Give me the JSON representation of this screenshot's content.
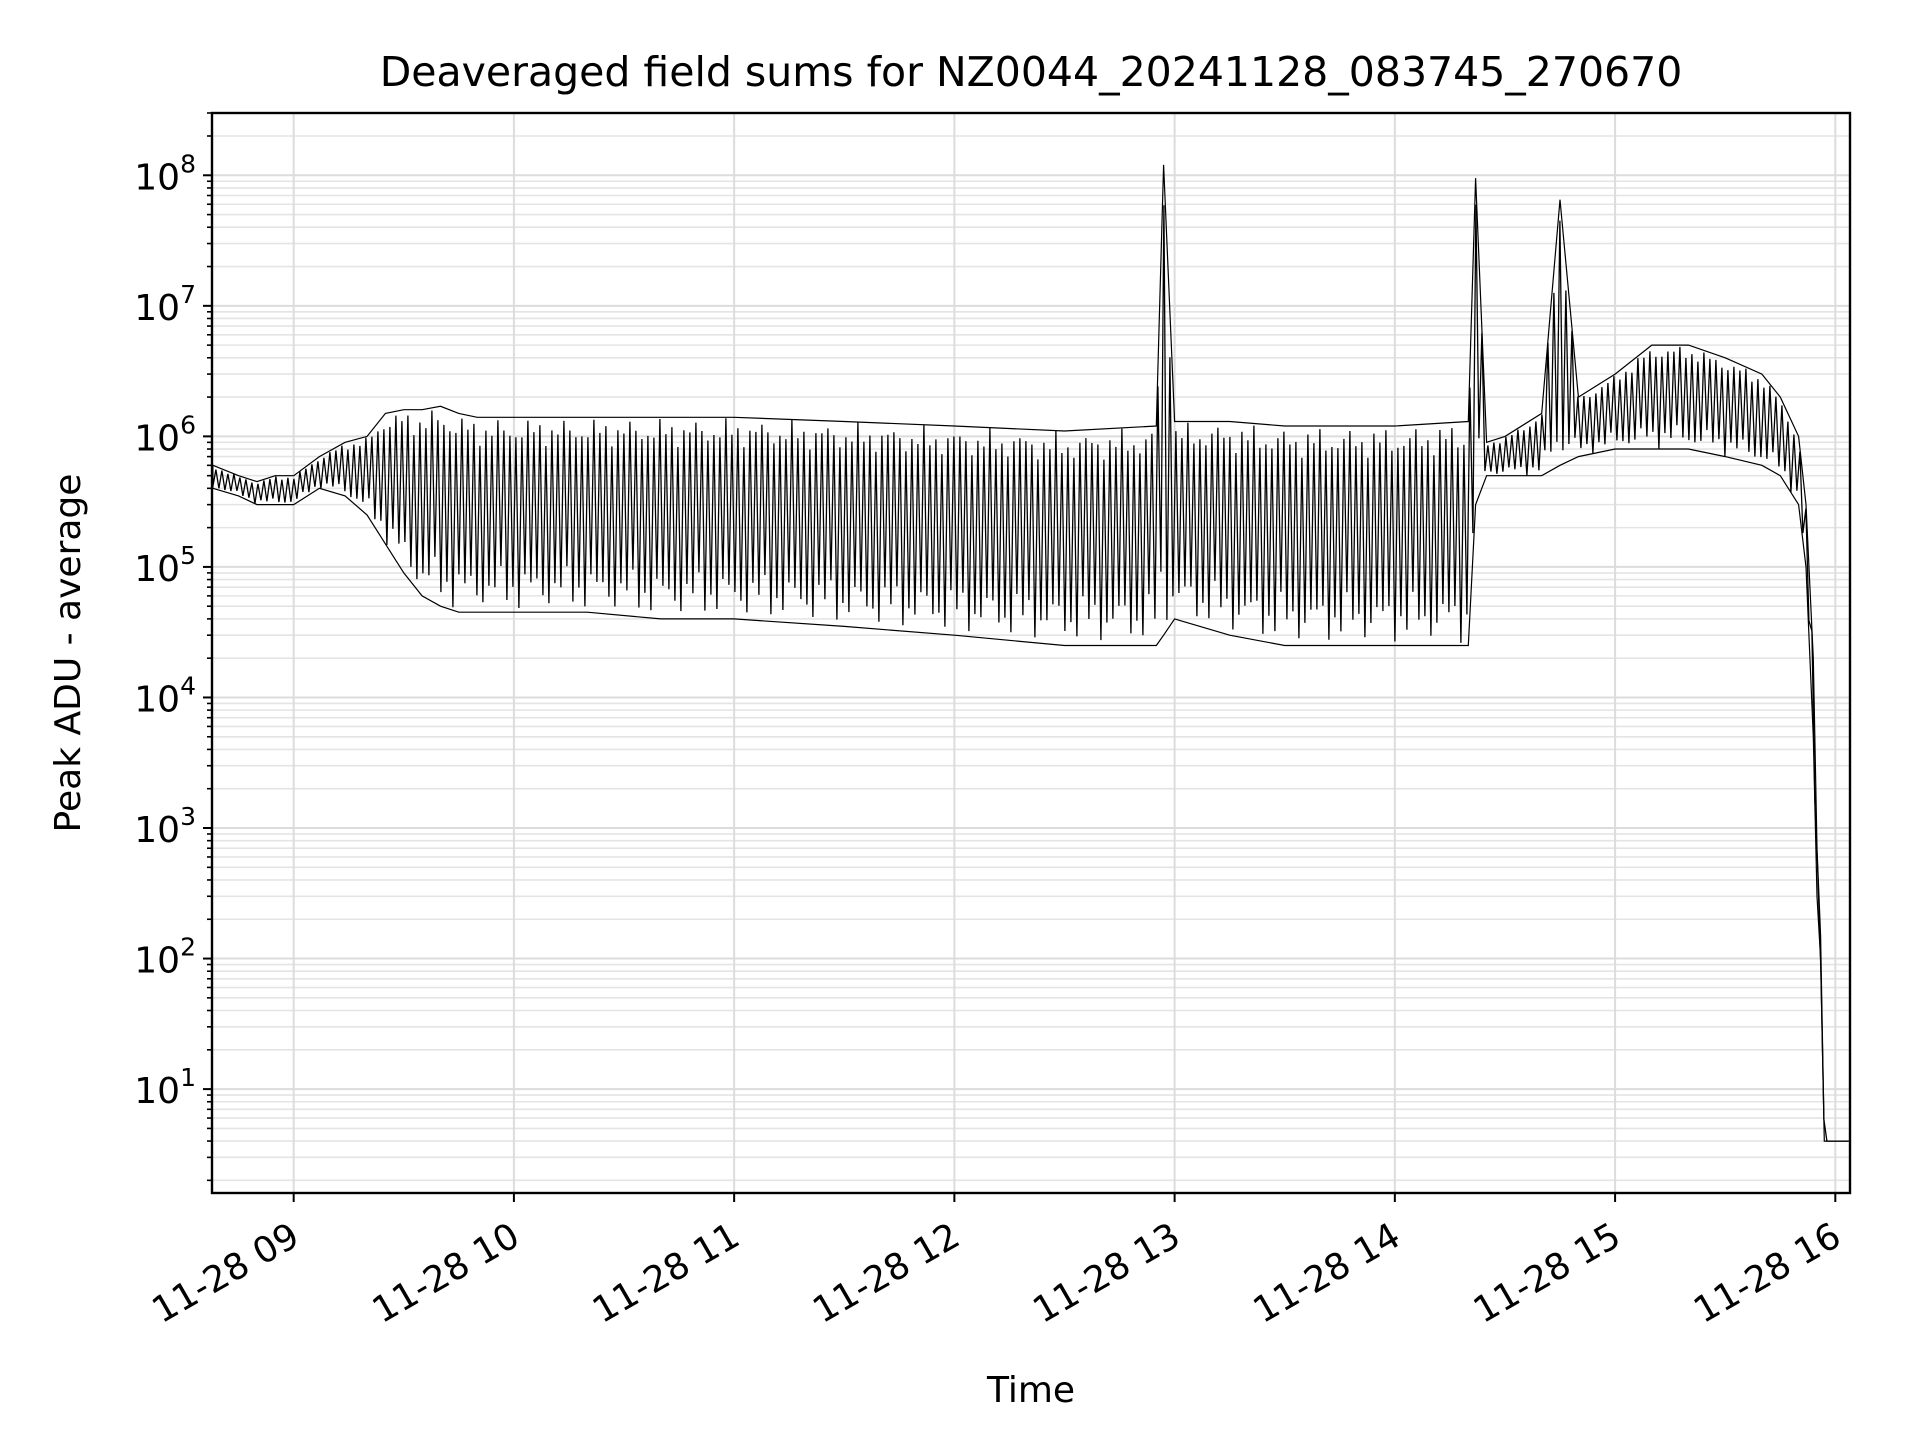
{
  "chart_data": {
    "type": "line",
    "title": "Deaveraged field sums for NZ0044_20241128_083745_270670",
    "xlabel": "Time",
    "ylabel": "Peak ADU - average",
    "yscale": "log",
    "grid": true,
    "xlim": [
      "2024-11-28 08:37:45",
      "2024-11-28 16:04:00"
    ],
    "ylim": [
      1.6,
      300000000
    ],
    "x_ticks": [
      {
        "value": "2024-11-28 09:00",
        "label": "11-28 09"
      },
      {
        "value": "2024-11-28 10:00",
        "label": "11-28 10"
      },
      {
        "value": "2024-11-28 11:00",
        "label": "11-28 11"
      },
      {
        "value": "2024-11-28 12:00",
        "label": "11-28 12"
      },
      {
        "value": "2024-11-28 13:00",
        "label": "11-28 13"
      },
      {
        "value": "2024-11-28 14:00",
        "label": "11-28 14"
      },
      {
        "value": "2024-11-28 15:00",
        "label": "11-28 15"
      },
      {
        "value": "2024-11-28 16:00",
        "label": "11-28 16"
      }
    ],
    "y_ticks": [
      {
        "value": 10,
        "base": "10",
        "exp": "1"
      },
      {
        "value": 100,
        "base": "10",
        "exp": "2"
      },
      {
        "value": 1000,
        "base": "10",
        "exp": "3"
      },
      {
        "value": 10000,
        "base": "10",
        "exp": "4"
      },
      {
        "value": 100000,
        "base": "10",
        "exp": "5"
      },
      {
        "value": 1000000,
        "base": "10",
        "exp": "6"
      },
      {
        "value": 10000000,
        "base": "10",
        "exp": "7"
      },
      {
        "value": 100000000,
        "base": "10",
        "exp": "8"
      }
    ],
    "line_color": "#000000",
    "series": [
      {
        "x": [
          "2024-11-28 08:38",
          "2024-11-28 08:45",
          "2024-11-28 08:50",
          "2024-11-28 08:55",
          "2024-11-28 09:00",
          "2024-11-28 09:07",
          "2024-11-28 09:14",
          "2024-11-28 09:20",
          "2024-11-28 09:25",
          "2024-11-28 09:30",
          "2024-11-28 09:35",
          "2024-11-28 09:40",
          "2024-11-28 09:45",
          "2024-11-28 09:50",
          "2024-11-28 10:00",
          "2024-11-28 10:20",
          "2024-11-28 10:40",
          "2024-11-28 11:00",
          "2024-11-28 11:30",
          "2024-11-28 12:00",
          "2024-11-28 12:30",
          "2024-11-28 12:55",
          "2024-11-28 12:57",
          "2024-11-28 13:00",
          "2024-11-28 13:15",
          "2024-11-28 13:30",
          "2024-11-28 14:00",
          "2024-11-28 14:20",
          "2024-11-28 14:22",
          "2024-11-28 14:25",
          "2024-11-28 14:30",
          "2024-11-28 14:40",
          "2024-11-28 14:45",
          "2024-11-28 14:50",
          "2024-11-28 15:00",
          "2024-11-28 15:10",
          "2024-11-28 15:20",
          "2024-11-28 15:30",
          "2024-11-28 15:40",
          "2024-11-28 15:45",
          "2024-11-28 15:50",
          "2024-11-28 15:52",
          "2024-11-28 15:54",
          "2024-11-28 15:55",
          "2024-11-28 15:56",
          "2024-11-28 15:57",
          "2024-11-28 16:00",
          "2024-11-28 16:04"
        ],
        "upper": [
          600000,
          500000,
          450000,
          500000,
          500000,
          700000,
          900000,
          1000000,
          1500000,
          1600000,
          1600000,
          1700000,
          1500000,
          1400000,
          1400000,
          1400000,
          1400000,
          1400000,
          1300000,
          1200000,
          1100000,
          1200000,
          120000000,
          1300000,
          1300000,
          1200000,
          1200000,
          1300000,
          95000000,
          900000,
          1000000,
          1500000,
          65000000,
          2000000,
          3000000,
          5000000,
          5000000,
          4000000,
          3000000,
          2000000,
          1000000,
          300000,
          20000,
          700,
          150,
          4,
          4,
          4
        ],
        "lower": [
          400000,
          350000,
          300000,
          300000,
          300000,
          400000,
          350000,
          250000,
          150000,
          90000,
          60000,
          50000,
          45000,
          45000,
          45000,
          45000,
          40000,
          40000,
          35000,
          30000,
          25000,
          25000,
          30000,
          40000,
          30000,
          25000,
          25000,
          25000,
          300000,
          500000,
          500000,
          500000,
          600000,
          700000,
          800000,
          800000,
          800000,
          700000,
          600000,
          500000,
          300000,
          100000,
          5000,
          300,
          100,
          4,
          4,
          4
        ]
      }
    ]
  }
}
